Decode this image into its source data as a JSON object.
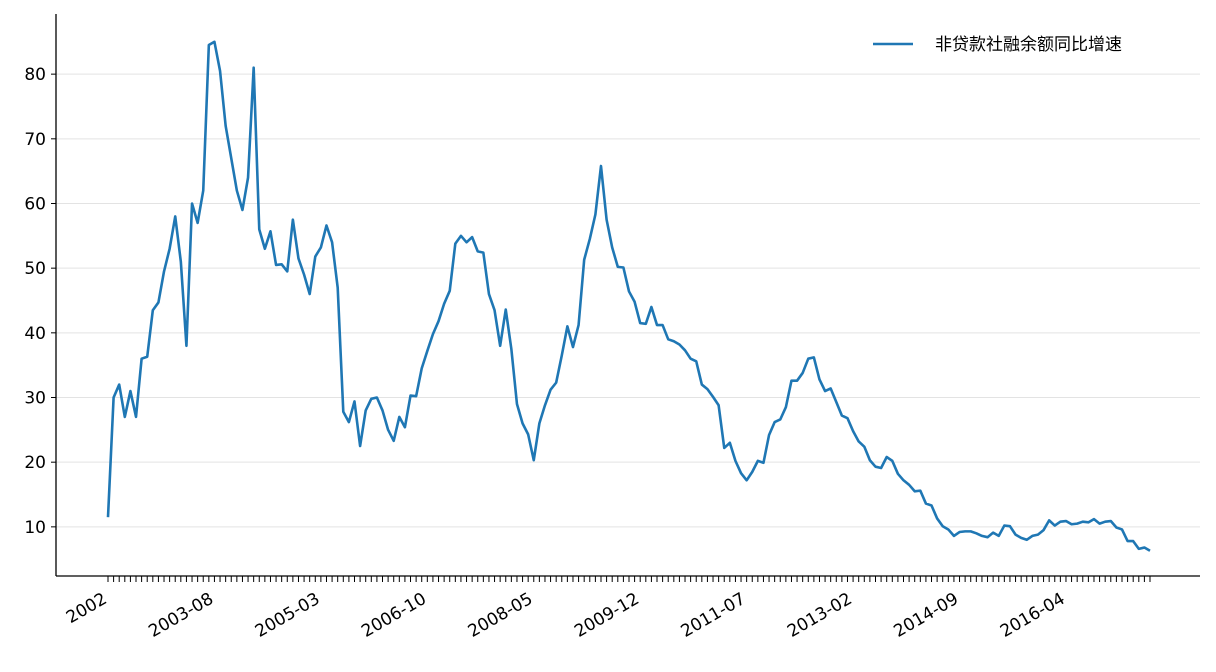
{
  "chart_data": {
    "type": "line",
    "categories": [
      "2002",
      null,
      null,
      null,
      null,
      null,
      null,
      null,
      null,
      null,
      null,
      null,
      null,
      null,
      null,
      null,
      null,
      null,
      null,
      "2003-08",
      null,
      null,
      null,
      null,
      null,
      null,
      null,
      null,
      null,
      null,
      null,
      null,
      null,
      null,
      null,
      null,
      null,
      null,
      "2005-03",
      null,
      null,
      null,
      null,
      null,
      null,
      null,
      null,
      null,
      null,
      null,
      null,
      null,
      null,
      null,
      null,
      null,
      null,
      "2006-10",
      null,
      null,
      null,
      null,
      null,
      null,
      null,
      null,
      null,
      null,
      null,
      null,
      null,
      null,
      null,
      null,
      null,
      null,
      "2008-05",
      null,
      null,
      null,
      null,
      null,
      null,
      null,
      null,
      null,
      null,
      null,
      null,
      null,
      null,
      null,
      null,
      null,
      null,
      "2009-12",
      null,
      null,
      null,
      null,
      null,
      null,
      null,
      null,
      null,
      null,
      null,
      null,
      null,
      null,
      null,
      null,
      null,
      null,
      "2011-07",
      null,
      null,
      null,
      null,
      null,
      null,
      null,
      null,
      null,
      null,
      null,
      null,
      null,
      null,
      null,
      null,
      null,
      null,
      "2013-02",
      null,
      null,
      null,
      null,
      null,
      null,
      null,
      null,
      null,
      null,
      null,
      null,
      null,
      null,
      null,
      null,
      null,
      null,
      "2014-09",
      null,
      null,
      null,
      null,
      null,
      null,
      null,
      null,
      null,
      null,
      null,
      null,
      null,
      null,
      null,
      null,
      null,
      null,
      "2016-04",
      null,
      null,
      null,
      null,
      null,
      null,
      null,
      null,
      null,
      null,
      null,
      null,
      null,
      null,
      null
    ],
    "series": [
      {
        "name": "非贷款社融余额同比增速",
        "color": "#1f77b4",
        "values": [
          11.5,
          30,
          32,
          27,
          31,
          27,
          36,
          36.3,
          43.5,
          44.7,
          49.5,
          53,
          58,
          51,
          38,
          60,
          57,
          62,
          84.5,
          85,
          80.5,
          72,
          67,
          62,
          59,
          64,
          81,
          56,
          53,
          55.7,
          50.5,
          50.6,
          49.5,
          57.5,
          51.5,
          49,
          46,
          51.8,
          53.2,
          56.6,
          54,
          47,
          27.8,
          26.2,
          29.4,
          22.5,
          28,
          29.8,
          30,
          28,
          25,
          23.3,
          27,
          25.4,
          30.3,
          30.2,
          34.5,
          37.2,
          39.8,
          41.8,
          44.5,
          46.5,
          53.8,
          55,
          54,
          54.8,
          52.6,
          52.4,
          46,
          43.5,
          38,
          43.6,
          37.5,
          29,
          26,
          24.3,
          20.3,
          26,
          28.8,
          31.2,
          32.3,
          36.5,
          41,
          37.8,
          41.2,
          51.3,
          54.5,
          58.3,
          65.8,
          57.5,
          53.2,
          50.2,
          50.1,
          46.4,
          44.8,
          41.5,
          41.4,
          44,
          41.2,
          41.2,
          39,
          38.7,
          38.2,
          37.3,
          36,
          35.6,
          32,
          31.3,
          30.1,
          28.8,
          22.2,
          23,
          20.2,
          18.3,
          17.2,
          18.5,
          20.2,
          19.9,
          24.2,
          26.2,
          26.6,
          28.5,
          32.6,
          32.6,
          33.8,
          36,
          36.2,
          32.8,
          31,
          31.4,
          29.3,
          27.2,
          26.8,
          24.8,
          23.2,
          22.4,
          20.3,
          19.3,
          19.1,
          20.8,
          20.2,
          18.2,
          17.2,
          16.5,
          15.5,
          15.6,
          13.6,
          13.3,
          11.3,
          10.1,
          9.6,
          8.6,
          9.2,
          9.3,
          9.3,
          9.0,
          8.6,
          8.4,
          9.1,
          8.6,
          10.2,
          10.1,
          8.8,
          8.3,
          8.0,
          8.6,
          8.8,
          9.5,
          11,
          10.2,
          10.8,
          10.9,
          10.4,
          10.5,
          10.8,
          10.7,
          11.2,
          10.5,
          10.8,
          10.9,
          9.9,
          9.6,
          7.8,
          7.8,
          6.6,
          6.8,
          6.3
        ]
      }
    ],
    "ylim": [
      2.4,
      89.3
    ],
    "yticks": [
      10,
      20,
      30,
      40,
      50,
      60,
      70,
      80
    ],
    "grid": true,
    "legend": "upper right"
  }
}
